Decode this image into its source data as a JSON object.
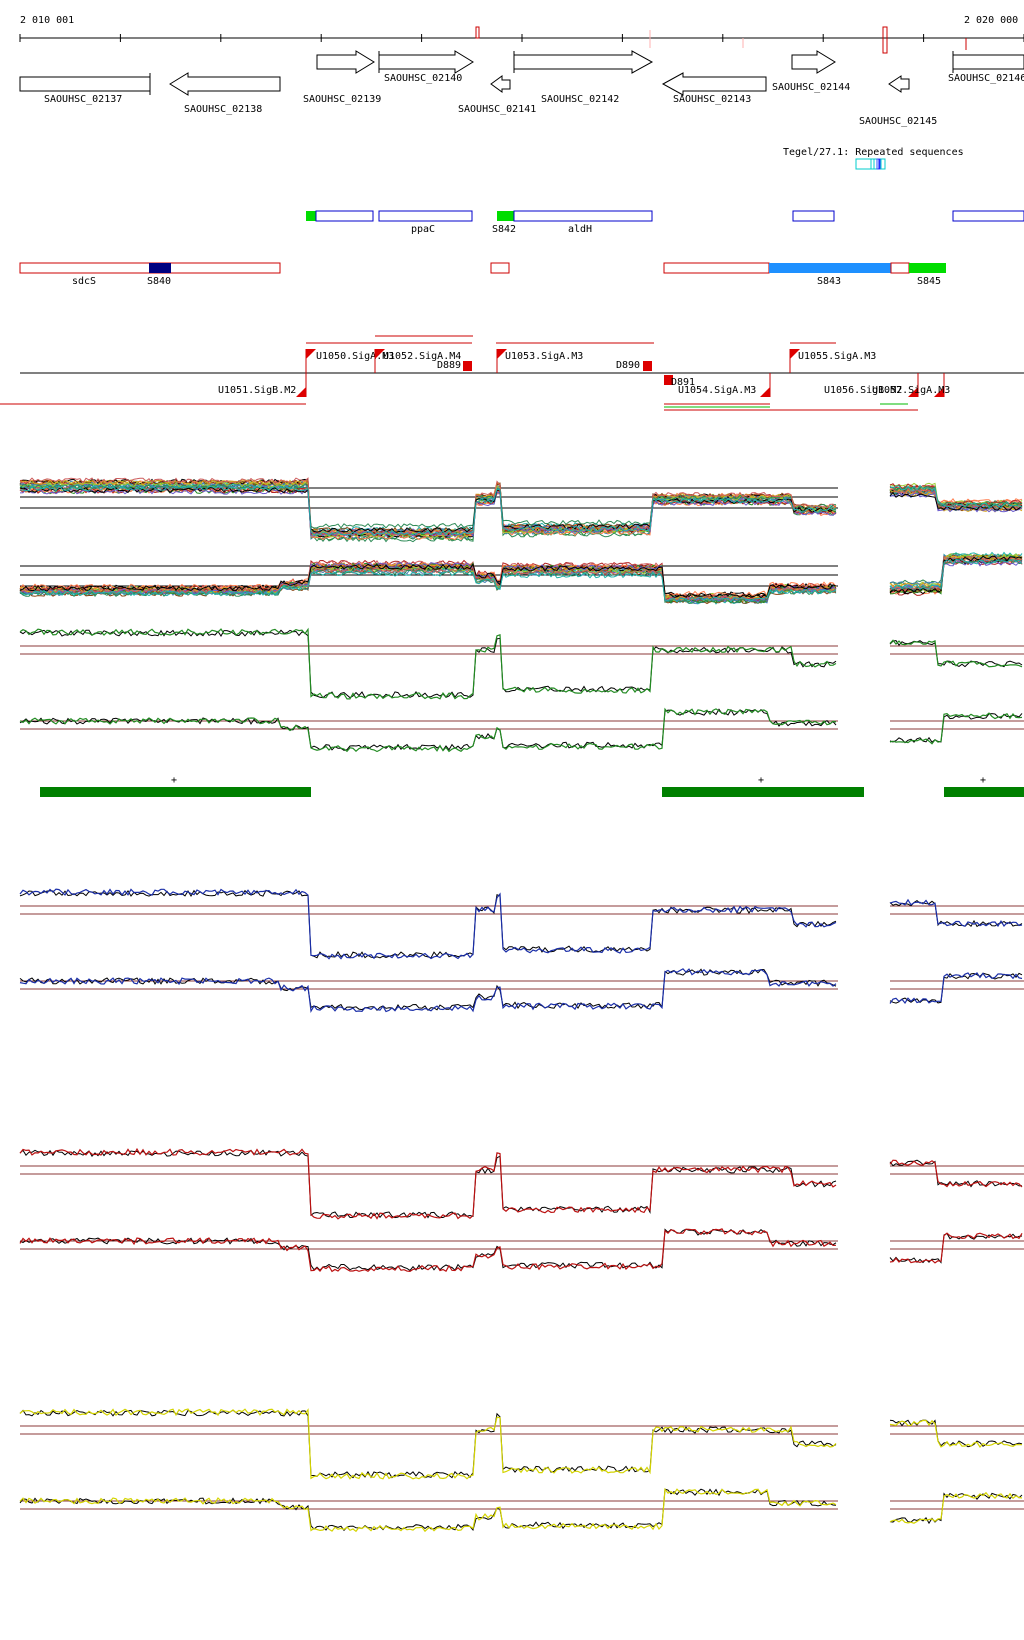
{
  "ruler": {
    "start_label": "2 010 001",
    "end_label": "2 020 000"
  },
  "repeats_label": "Tegel/27.1: Repeated sequences",
  "genes": [
    {
      "label": "SAOUHSC_02137",
      "strand": "+"
    },
    {
      "label": "SAOUHSC_02138",
      "strand": "-"
    },
    {
      "label": "SAOUHSC_02139",
      "strand": "+"
    },
    {
      "label": "SAOUHSC_02140",
      "strand": "+"
    },
    {
      "label": "SAOUHSC_02141",
      "strand": "-"
    },
    {
      "label": "SAOUHSC_02142",
      "strand": "+"
    },
    {
      "label": "SAOUHSC_02143",
      "strand": "-"
    },
    {
      "label": "SAOUHSC_02144",
      "strand": "+"
    },
    {
      "label": "SAOUHSC_02145",
      "strand": "-"
    },
    {
      "label": "SAOUHSC_02146",
      "strand": "+"
    }
  ],
  "features_plus": [
    {
      "label": "ppaC"
    },
    {
      "label": "S842"
    },
    {
      "label": "aldH"
    }
  ],
  "features_minus": [
    {
      "label": "sdcS"
    },
    {
      "label": "S840"
    },
    {
      "label": "S843"
    },
    {
      "label": "S845"
    }
  ],
  "promoters": [
    {
      "label": "U1050.SigA.M3"
    },
    {
      "label": "U1052.SigA.M4"
    },
    {
      "label": "D889"
    },
    {
      "label": "U1053.SigA.M3"
    },
    {
      "label": "D890"
    },
    {
      "label": "U1055.SigA.M3"
    },
    {
      "label": "U1051.SigB.M2"
    },
    {
      "label": "D891"
    },
    {
      "label": "U1054.SigA.M3"
    },
    {
      "label": "U1056.SigB.M2"
    },
    {
      "label": "U1057.SigA.M3"
    }
  ],
  "segment_marks": [
    "+",
    "+",
    "+"
  ],
  "colors": {
    "gene_outline": "#000000",
    "feature_blue": "#0000cc",
    "feature_red": "#cc0000",
    "feature_green": "#00dd00",
    "feature_navy": "#000080",
    "feature_lightblue": "#1e90ff",
    "segment_green": "#008000",
    "track_green": "#228b22",
    "track_blue": "#1a2ea8",
    "track_red": "#bb1111",
    "track_yellow": "#d4d400",
    "baseline": "#8b3a3a"
  }
}
